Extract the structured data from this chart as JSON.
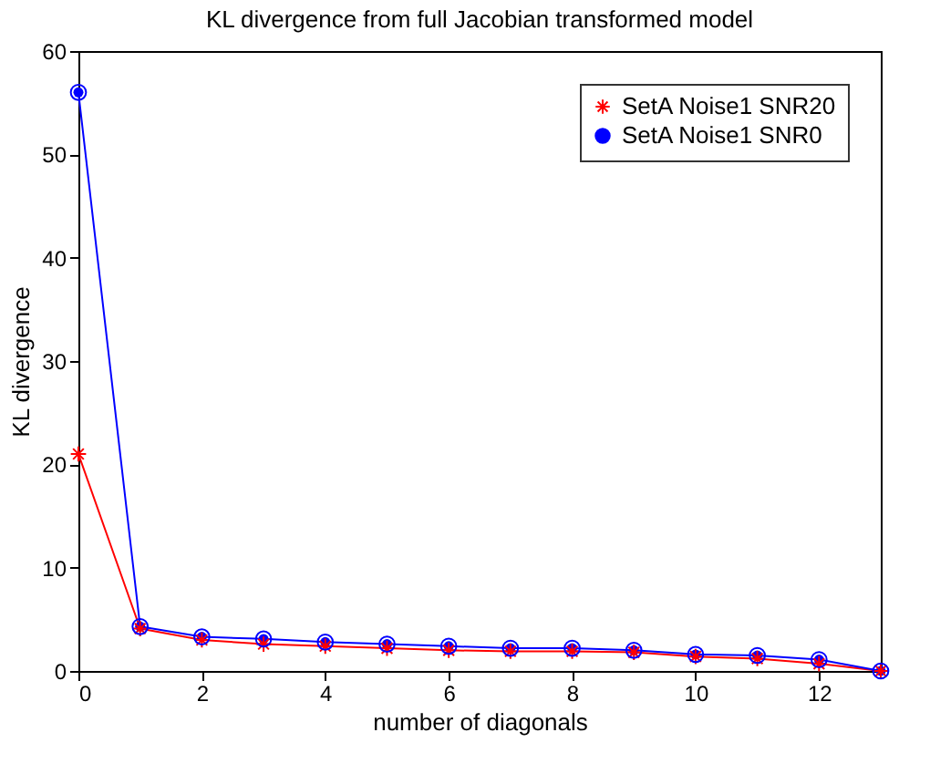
{
  "chart_data": {
    "type": "line",
    "title": "KL divergence from full Jacobian transformed model",
    "xlabel": "number of diagonals",
    "ylabel": "KL divergence",
    "x": [
      0,
      1,
      2,
      3,
      4,
      5,
      6,
      7,
      8,
      9,
      10,
      11,
      12,
      13
    ],
    "series": [
      {
        "name": "SetA Noise1 SNR20",
        "color": "#ff0000",
        "marker": "cross",
        "values": [
          21,
          4.1,
          3.0,
          2.6,
          2.4,
          2.2,
          2.0,
          1.9,
          1.9,
          1.8,
          1.4,
          1.2,
          0.7,
          0
        ]
      },
      {
        "name": "SetA Noise1 SNR0",
        "color": "#0000ff",
        "marker": "circle",
        "values": [
          56,
          4.3,
          3.3,
          3.1,
          2.8,
          2.6,
          2.4,
          2.2,
          2.2,
          2.0,
          1.6,
          1.5,
          1.1,
          0
        ]
      }
    ],
    "xlim": [
      0,
      13
    ],
    "xticks": [
      0,
      2,
      4,
      6,
      8,
      10,
      12
    ],
    "ylim": [
      0,
      60
    ],
    "yticks": [
      0,
      10,
      20,
      30,
      40,
      50,
      60
    ],
    "grid": false,
    "legend": "top right",
    "line_style": "solid"
  }
}
